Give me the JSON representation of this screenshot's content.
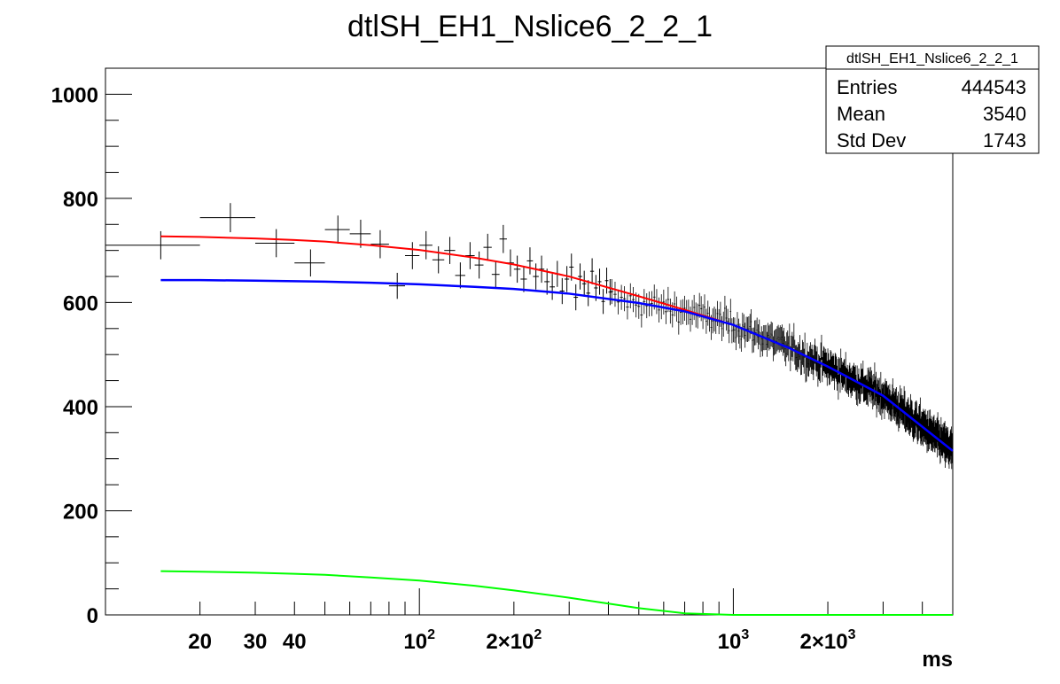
{
  "chart_data": {
    "type": "scatter",
    "title": "dtlSH_EH1_Nslice6_2_2_1",
    "xlabel": "ms",
    "ylabel": "",
    "x_scale": "log",
    "xlim": [
      10,
      5000
    ],
    "ylim": [
      0,
      1050
    ],
    "grid": false,
    "x_tick_labels": [
      {
        "value": 20,
        "label": "20"
      },
      {
        "value": 30,
        "label": "30"
      },
      {
        "value": 40,
        "label": "40"
      },
      {
        "value": 100,
        "label": "10",
        "sup": "2"
      },
      {
        "value": 200,
        "label": "2×10",
        "sup": "2"
      },
      {
        "value": 1000,
        "label": "10",
        "sup": "3"
      },
      {
        "value": 2000,
        "label": "2×10",
        "sup": "3"
      }
    ],
    "y_tick_labels": [
      {
        "value": 0,
        "label": "0"
      },
      {
        "value": 200,
        "label": "200"
      },
      {
        "value": 400,
        "label": "400"
      },
      {
        "value": 600,
        "label": "600"
      },
      {
        "value": 800,
        "label": "800"
      },
      {
        "value": 1000,
        "label": "1000"
      }
    ],
    "histogram": {
      "points": [
        [
          15,
          710,
          5,
          27
        ],
        [
          25,
          763,
          5,
          28
        ],
        [
          35,
          714,
          5,
          27
        ],
        [
          45,
          676,
          5,
          26
        ],
        [
          55,
          740,
          5,
          27
        ],
        [
          65,
          732,
          5,
          27
        ],
        [
          75,
          712,
          5,
          27
        ],
        [
          85,
          632,
          5,
          25
        ],
        [
          95,
          690,
          5,
          26
        ],
        [
          105,
          710,
          5,
          27
        ],
        [
          115,
          682,
          5,
          26
        ],
        [
          125,
          700,
          5,
          26
        ],
        [
          135,
          652,
          5,
          25
        ],
        [
          145,
          690,
          5,
          26
        ],
        [
          155,
          672,
          5,
          26
        ],
        [
          165,
          706,
          5,
          26
        ],
        [
          175,
          654,
          5,
          25
        ],
        [
          185,
          722,
          5,
          27
        ],
        [
          195,
          676,
          5,
          26
        ],
        [
          205,
          664,
          5,
          26
        ],
        [
          215,
          645,
          5,
          25
        ],
        [
          225,
          680,
          5,
          26
        ],
        [
          235,
          650,
          5,
          25
        ],
        [
          245,
          664,
          5,
          26
        ],
        [
          255,
          640,
          5,
          25
        ],
        [
          265,
          630,
          5,
          25
        ],
        [
          275,
          655,
          5,
          25
        ],
        [
          285,
          622,
          5,
          25
        ],
        [
          295,
          645,
          5,
          25
        ],
        [
          305,
          668,
          5,
          26
        ],
        [
          315,
          610,
          5,
          25
        ],
        [
          325,
          650,
          5,
          25
        ],
        [
          335,
          636,
          5,
          25
        ],
        [
          345,
          618,
          5,
          25
        ],
        [
          355,
          660,
          5,
          25
        ],
        [
          365,
          628,
          5,
          25
        ],
        [
          375,
          640,
          5,
          25
        ],
        [
          385,
          602,
          5,
          24
        ],
        [
          395,
          642,
          5,
          25
        ],
        [
          405,
          620,
          5,
          25
        ]
      ],
      "noise_band": {
        "x_start": 410,
        "x_end": 5000,
        "half_width": 5,
        "y_err": 24
      }
    },
    "series": [
      {
        "color": "#ff0000",
        "type": "line",
        "x": [
          15,
          20,
          30,
          40,
          50,
          70,
          100,
          150,
          200,
          300,
          500,
          700,
          1000,
          1500,
          2000,
          3000,
          5000
        ],
        "y": [
          727,
          726,
          723,
          720,
          717,
          710,
          701,
          686,
          673,
          650,
          612,
          586,
          557,
          513,
          477,
          421,
          315
        ]
      },
      {
        "color": "#0000ff",
        "type": "line",
        "x": [
          15,
          20,
          30,
          40,
          50,
          70,
          100,
          150,
          200,
          300,
          500,
          700,
          1000,
          1500,
          2000,
          3000,
          5000
        ],
        "y": [
          643,
          643,
          642,
          641,
          640,
          638,
          635,
          630,
          626,
          617,
          599,
          583,
          557,
          513,
          477,
          421,
          315
        ]
      },
      {
        "color": "#00ff00",
        "type": "line",
        "x": [
          15,
          20,
          30,
          40,
          50,
          70,
          100,
          150,
          200,
          300,
          500,
          700,
          1000,
          1500,
          2000,
          3000,
          5000
        ],
        "y": [
          84,
          83,
          81,
          79,
          77,
          72,
          66,
          56,
          47,
          33,
          13,
          3,
          0,
          0,
          0,
          0,
          0
        ]
      }
    ]
  },
  "stats_box": {
    "title": "dtlSH_EH1_Nslice6_2_2_1",
    "rows": [
      {
        "label": "Entries",
        "value": "444543"
      },
      {
        "label": "Mean",
        "value": "3540"
      },
      {
        "label": "Std Dev",
        "value": "1743"
      }
    ]
  }
}
